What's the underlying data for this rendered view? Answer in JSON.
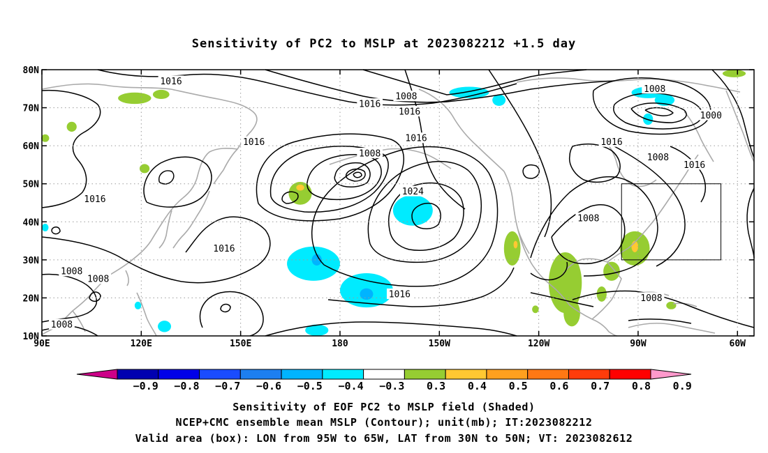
{
  "title": "Sensitivity of PC2 to MSLP at 2023082212 +1.5 day",
  "map": {
    "lon_range": [
      90,
      305
    ],
    "lat_range": [
      10,
      80
    ],
    "lon_ticks": [
      {
        "lon": 90,
        "label": "90E"
      },
      {
        "lon": 120,
        "label": "120E"
      },
      {
        "lon": 150,
        "label": "150E"
      },
      {
        "lon": 180,
        "label": "180"
      },
      {
        "lon": 210,
        "label": "150W"
      },
      {
        "lon": 240,
        "label": "120W"
      },
      {
        "lon": 270,
        "label": "90W"
      },
      {
        "lon": 300,
        "label": "60W"
      }
    ],
    "lat_ticks": [
      {
        "lat": 80,
        "label": "80N"
      },
      {
        "lat": 70,
        "label": "70N"
      },
      {
        "lat": 60,
        "label": "60N"
      },
      {
        "lat": 50,
        "label": "50N"
      },
      {
        "lat": 40,
        "label": "40N"
      },
      {
        "lat": 30,
        "label": "30N"
      },
      {
        "lat": 20,
        "label": "20N"
      },
      {
        "lat": 10,
        "label": "10N"
      }
    ],
    "grid": true,
    "valid_box": {
      "lon": [
        265,
        295
      ],
      "lat": [
        30,
        50
      ]
    },
    "contour_labels": [
      {
        "text": "1016",
        "lon": 129,
        "lat": 77
      },
      {
        "text": "1008",
        "lon": 200,
        "lat": 73
      },
      {
        "text": "1016",
        "lon": 189,
        "lat": 71
      },
      {
        "text": "1016",
        "lon": 201,
        "lat": 69
      },
      {
        "text": "1008",
        "lon": 275,
        "lat": 75
      },
      {
        "text": "1000",
        "lon": 292,
        "lat": 68
      },
      {
        "text": "1016",
        "lon": 154,
        "lat": 61
      },
      {
        "text": "1016",
        "lon": 203,
        "lat": 62
      },
      {
        "text": "1008",
        "lon": 189,
        "lat": 58
      },
      {
        "text": "1016",
        "lon": 262,
        "lat": 61
      },
      {
        "text": "1008",
        "lon": 276,
        "lat": 57
      },
      {
        "text": "1016",
        "lon": 287,
        "lat": 55
      },
      {
        "text": "1024",
        "lon": 202,
        "lat": 48
      },
      {
        "text": "1016",
        "lon": 106,
        "lat": 46
      },
      {
        "text": "1008",
        "lon": 255,
        "lat": 41
      },
      {
        "text": "1016",
        "lon": 145,
        "lat": 33
      },
      {
        "text": "1008",
        "lon": 99,
        "lat": 27
      },
      {
        "text": "1008",
        "lon": 107,
        "lat": 25
      },
      {
        "text": "1016",
        "lon": 198,
        "lat": 21
      },
      {
        "text": "1008",
        "lon": 274,
        "lat": 20
      },
      {
        "text": "1008",
        "lon": 96,
        "lat": 13
      }
    ],
    "shaded_patches": [
      {
        "level": "pos-0.3",
        "lon": 118,
        "lat": 72.5,
        "rlon": 5,
        "rlat": 1.5
      },
      {
        "level": "pos-0.3",
        "lon": 126,
        "lat": 73.5,
        "rlon": 2.5,
        "rlat": 1.2
      },
      {
        "level": "pos-0.3",
        "lon": 99,
        "lat": 65,
        "rlon": 1.5,
        "rlat": 1.3
      },
      {
        "level": "pos-0.3",
        "lon": 91,
        "lat": 62,
        "rlon": 1.2,
        "rlat": 1
      },
      {
        "level": "pos-0.3",
        "lon": 121,
        "lat": 54,
        "rlon": 1.5,
        "rlat": 1.2
      },
      {
        "level": "pos-0.3",
        "lon": 168,
        "lat": 47.5,
        "rlon": 3.5,
        "rlat": 3
      },
      {
        "level": "pos-0.3",
        "lon": 232,
        "lat": 33,
        "rlon": 2.5,
        "rlat": 4.5
      },
      {
        "level": "pos-0.3",
        "lon": 248,
        "lat": 24,
        "rlon": 5,
        "rlat": 8
      },
      {
        "level": "pos-0.3",
        "lon": 250,
        "lat": 16,
        "rlon": 2.5,
        "rlat": 3.5
      },
      {
        "level": "pos-0.3",
        "lon": 269,
        "lat": 33,
        "rlon": 4.5,
        "rlat": 4.5
      },
      {
        "level": "pos-0.3",
        "lon": 262,
        "lat": 27,
        "rlon": 2.5,
        "rlat": 2.5
      },
      {
        "level": "pos-0.3",
        "lon": 259,
        "lat": 21,
        "rlon": 1.5,
        "rlat": 2
      },
      {
        "level": "pos-0.3",
        "lon": 299,
        "lat": 79,
        "rlon": 3.5,
        "rlat": 1
      },
      {
        "level": "pos-0.3",
        "lon": 280,
        "lat": 18,
        "rlon": 1.5,
        "rlat": 1
      },
      {
        "level": "pos-0.3",
        "lon": 239,
        "lat": 17,
        "rlon": 1,
        "rlat": 1
      },
      {
        "level": "pos-0.4",
        "lon": 269,
        "lat": 33.5,
        "rlon": 1,
        "rlat": 1.5
      },
      {
        "level": "pos-0.4",
        "lon": 168,
        "lat": 49,
        "rlon": 1.2,
        "rlat": 0.8
      },
      {
        "level": "pos-0.4",
        "lon": 233,
        "lat": 34,
        "rlon": 0.6,
        "rlat": 1
      },
      {
        "level": "neg-0.3",
        "lon": 219,
        "lat": 74,
        "rlon": 6,
        "rlat": 1.5
      },
      {
        "level": "neg-0.3",
        "lon": 228,
        "lat": 72,
        "rlon": 2,
        "rlat": 1.5
      },
      {
        "level": "neg-0.3",
        "lon": 273,
        "lat": 74,
        "rlon": 5,
        "rlat": 1.5
      },
      {
        "level": "neg-0.3",
        "lon": 278,
        "lat": 72,
        "rlon": 3,
        "rlat": 1.5
      },
      {
        "level": "neg-0.3",
        "lon": 273,
        "lat": 67,
        "rlon": 1.5,
        "rlat": 1.5
      },
      {
        "level": "neg-0.3",
        "lon": 202,
        "lat": 43,
        "rlon": 6,
        "rlat": 4
      },
      {
        "level": "neg-0.3",
        "lon": 172,
        "lat": 29,
        "rlon": 8,
        "rlat": 4.5
      },
      {
        "level": "neg-0.3",
        "lon": 188,
        "lat": 22,
        "rlon": 8,
        "rlat": 4.5
      },
      {
        "level": "neg-0.3",
        "lon": 173,
        "lat": 11.5,
        "rlon": 3.5,
        "rlat": 1.5
      },
      {
        "level": "neg-0.3",
        "lon": 127,
        "lat": 12.5,
        "rlon": 2,
        "rlat": 1.5
      },
      {
        "level": "neg-0.3",
        "lon": 119,
        "lat": 18,
        "rlon": 1,
        "rlat": 1
      },
      {
        "level": "neg-0.3",
        "lon": 91,
        "lat": 38.5,
        "rlon": 1,
        "rlat": 1
      },
      {
        "level": "neg-0.4",
        "lon": 173,
        "lat": 30,
        "rlon": 1.5,
        "rlat": 1.5
      },
      {
        "level": "neg-0.4",
        "lon": 188,
        "lat": 21,
        "rlon": 2,
        "rlat": 1.5
      }
    ],
    "contour_style": {
      "color": "#000000"
    },
    "coast_color": "#aaaaaa"
  },
  "colorbar": {
    "labels": [
      "-0.9",
      "-0.8",
      "-0.7",
      "-0.6",
      "-0.5",
      "-0.4",
      "-0.3",
      "0.3",
      "0.4",
      "0.5",
      "0.6",
      "0.7",
      "0.8",
      "0.9"
    ],
    "colors": [
      "#0000b0",
      "#0000e8",
      "#1a4cff",
      "#1d7ff0",
      "#00b4ff",
      "#00ebff",
      "#ffffff",
      "#96cd32",
      "#ffc832",
      "#ffa01e",
      "#ff7814",
      "#ff3c0a",
      "#ff0000"
    ],
    "under_color": "#cc0088",
    "over_color": "#ff99cc"
  },
  "footer": [
    "Sensitivity of EOF PC2 to MSLP field (Shaded)",
    "NCEP+CMC ensemble mean MSLP (Contour); unit(mb); IT:2023082212",
    "Valid area (box): LON from 95W to 65W, LAT from 30N to 50N; VT: 2023082612"
  ]
}
